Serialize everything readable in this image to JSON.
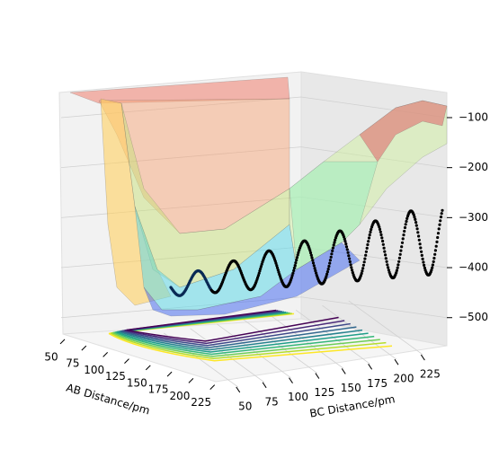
{
  "chart_data": {
    "type": "surface3d",
    "xlabel": "AB Distance/pm",
    "ylabel": "BC Distance/pm",
    "xlim": [
      40,
      240
    ],
    "xticks": [
      50,
      75,
      100,
      125,
      150,
      175,
      200,
      225
    ],
    "ylim": [
      40,
      240
    ],
    "yticks": [
      50,
      75,
      100,
      125,
      150,
      175,
      200,
      225
    ],
    "zlim": [
      -540,
      -60
    ],
    "zticks": [
      {
        "value": -100,
        "label": "−100"
      },
      {
        "value": -200,
        "label": "−200"
      },
      {
        "value": -300,
        "label": "−300"
      },
      {
        "value": -400,
        "label": "−400"
      },
      {
        "value": -500,
        "label": "−500"
      }
    ],
    "grid": true
  }
}
